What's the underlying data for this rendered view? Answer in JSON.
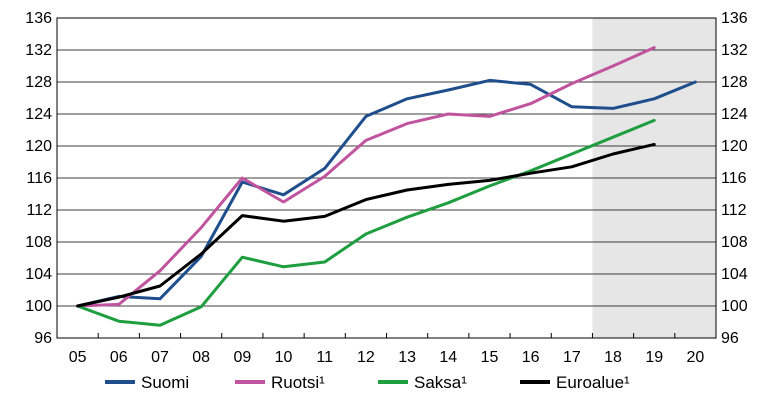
{
  "chart_data": {
    "type": "line",
    "title": "",
    "xlabel": "",
    "ylabel": "",
    "x": [
      "05",
      "06",
      "07",
      "08",
      "09",
      "10",
      "11",
      "12",
      "13",
      "14",
      "15",
      "16",
      "17",
      "18",
      "19",
      "20"
    ],
    "ylim": [
      96,
      136
    ],
    "yticks": [
      96,
      100,
      104,
      108,
      112,
      116,
      120,
      124,
      128,
      132,
      136
    ],
    "y_axis_both_sides": true,
    "grid": "horizontal",
    "forecast_shade_from": "18",
    "forecast_shade_color": "#e6e6e6",
    "legend_position": "bottom",
    "series": [
      {
        "name": "Suomi",
        "color": "#1f4e8c",
        "values": [
          100,
          101.2,
          100.9,
          106.2,
          115.5,
          113.9,
          117.2,
          123.7,
          125.9,
          127.0,
          128.2,
          127.7,
          124.9,
          124.7,
          125.9,
          128.0
        ]
      },
      {
        "name": "Ruotsi¹",
        "color": "#c0549e",
        "values": [
          100,
          100.2,
          104.4,
          109.8,
          116.0,
          113.0,
          116.2,
          120.7,
          122.8,
          124.0,
          123.7,
          125.3,
          127.8,
          130.0,
          132.3,
          null
        ]
      },
      {
        "name": "Saksa¹",
        "color": "#1e9e3e",
        "values": [
          100,
          98.1,
          97.6,
          99.9,
          106.1,
          104.9,
          105.5,
          109.0,
          111.1,
          112.9,
          115.0,
          116.9,
          119.0,
          121.1,
          123.2,
          null
        ]
      },
      {
        "name": "Euroalue¹",
        "color": "#000000",
        "values": [
          100,
          101.1,
          102.5,
          106.5,
          111.3,
          110.6,
          111.2,
          113.3,
          114.5,
          115.2,
          115.7,
          116.6,
          117.4,
          119.0,
          120.2,
          null
        ]
      }
    ]
  }
}
